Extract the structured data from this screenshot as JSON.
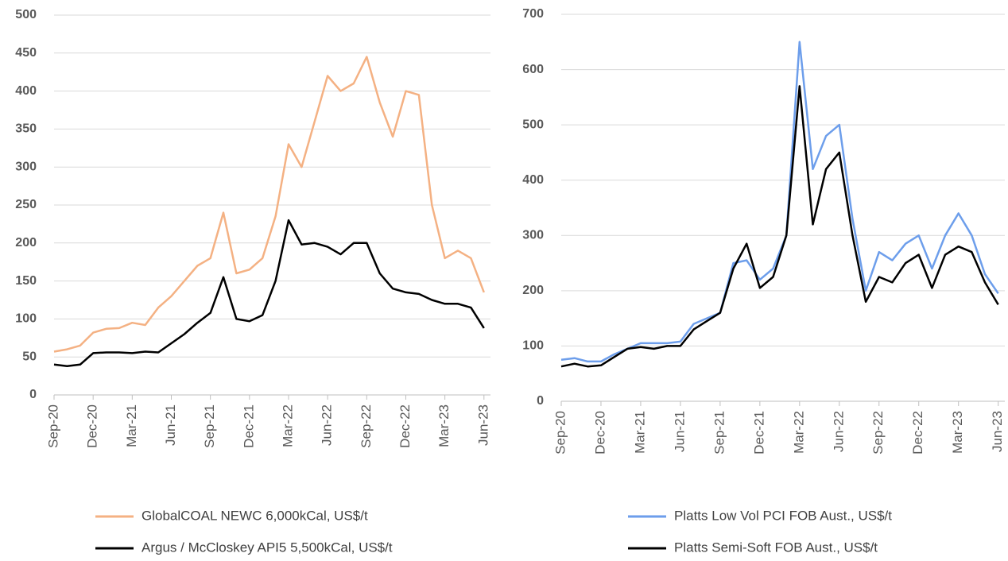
{
  "chart_data": [
    {
      "type": "line",
      "legend": "bottom",
      "grid": true,
      "categories": [
        "Sep-20",
        null,
        null,
        "Dec-20",
        null,
        null,
        "Mar-21",
        null,
        null,
        "Jun-21",
        null,
        null,
        "Sep-21",
        null,
        null,
        "Dec-21",
        null,
        null,
        "Mar-22",
        null,
        null,
        "Jun-22",
        null,
        null,
        "Sep-22",
        null,
        null,
        "Dec-22",
        null,
        null,
        "Mar-23",
        null,
        null,
        "Jun-23"
      ],
      "ylim": [
        0,
        500
      ],
      "yticks": [
        0,
        50,
        100,
        150,
        200,
        250,
        300,
        350,
        400,
        450,
        500
      ],
      "series": [
        {
          "name": "GlobalCOAL NEWC 6,000kCal, US$/t",
          "color": "#f4b183",
          "values": [
            57,
            60,
            65,
            82,
            87,
            88,
            95,
            92,
            115,
            130,
            150,
            170,
            180,
            240,
            160,
            165,
            180,
            235,
            330,
            300,
            360,
            420,
            400,
            410,
            445,
            385,
            340,
            400,
            395,
            250,
            180,
            190,
            180,
            135
          ]
        },
        {
          "name": "Argus / McCloskey API5 5,500kCal, US$/t",
          "color": "#000000",
          "values": [
            40,
            38,
            40,
            55,
            56,
            56,
            55,
            57,
            56,
            68,
            80,
            95,
            108,
            155,
            100,
            97,
            105,
            150,
            230,
            198,
            200,
            195,
            185,
            200,
            200,
            160,
            140,
            135,
            133,
            125,
            120,
            120,
            115,
            88
          ]
        }
      ]
    },
    {
      "type": "line",
      "legend": "bottom",
      "grid": true,
      "categories": [
        "Sep-20",
        null,
        null,
        "Dec-20",
        null,
        null,
        "Mar-21",
        null,
        null,
        "Jun-21",
        null,
        null,
        "Sep-21",
        null,
        null,
        "Dec-21",
        null,
        null,
        "Mar-22",
        null,
        null,
        "Jun-22",
        null,
        null,
        "Sep-22",
        null,
        null,
        "Dec-22",
        null,
        null,
        "Mar-23",
        null,
        null,
        "Jun-23"
      ],
      "ylim": [
        0,
        700
      ],
      "yticks": [
        0,
        100,
        200,
        300,
        400,
        500,
        600,
        700
      ],
      "series": [
        {
          "name": "Platts Low Vol PCI FOB Aust., US$/t",
          "color": "#6d9eeb",
          "values": [
            75,
            78,
            72,
            72,
            85,
            95,
            105,
            105,
            105,
            108,
            140,
            150,
            160,
            250,
            255,
            220,
            240,
            300,
            650,
            420,
            480,
            500,
            330,
            200,
            270,
            255,
            285,
            300,
            240,
            300,
            340,
            300,
            230,
            195
          ]
        },
        {
          "name": "Platts Semi-Soft FOB Aust., US$/t",
          "color": "#000000",
          "values": [
            63,
            68,
            63,
            65,
            80,
            95,
            98,
            95,
            100,
            100,
            130,
            145,
            160,
            240,
            285,
            205,
            225,
            300,
            570,
            320,
            420,
            450,
            300,
            180,
            225,
            215,
            250,
            265,
            205,
            265,
            280,
            270,
            215,
            175
          ]
        }
      ]
    }
  ]
}
